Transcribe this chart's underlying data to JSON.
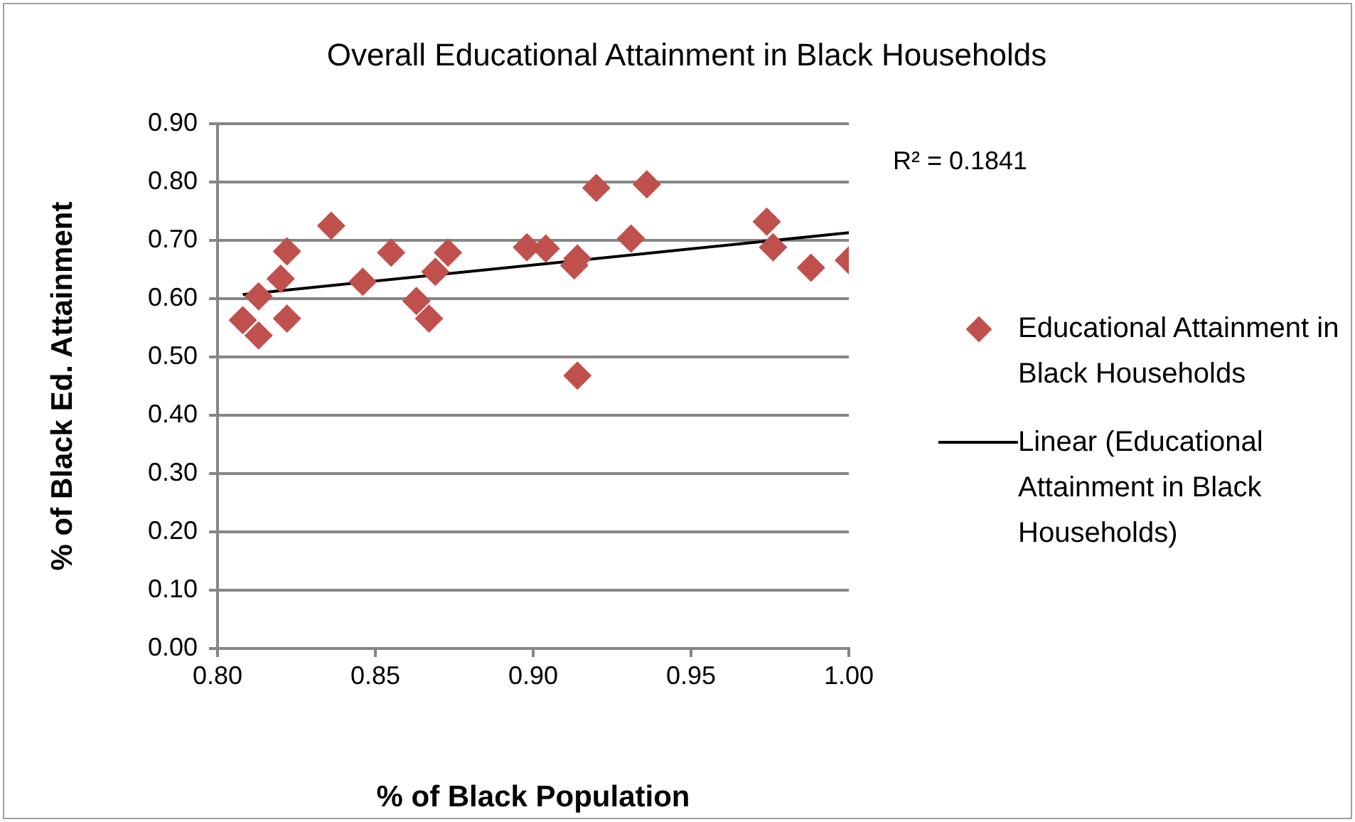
{
  "chart_data": {
    "type": "scatter",
    "title": "Overall Educational Attainment in Black Households",
    "xlabel": "% of Black Population",
    "ylabel": "% of Black Ed. Attainment",
    "xlim": [
      0.8,
      1.0
    ],
    "xticks": [
      {
        "value": 0.8,
        "label": "0.80"
      },
      {
        "value": 0.85,
        "label": "0.85"
      },
      {
        "value": 0.9,
        "label": "0.90"
      },
      {
        "value": 0.95,
        "label": "0.95"
      },
      {
        "value": 1.0,
        "label": "1.00"
      }
    ],
    "ylim": [
      0,
      0.9
    ],
    "yticks": [
      {
        "value": 0,
        "label": "0.00"
      },
      {
        "value": 0.1,
        "label": "0.10"
      },
      {
        "value": 0.2,
        "label": "0.20"
      },
      {
        "value": 0.3,
        "label": "0.30"
      },
      {
        "value": 0.4,
        "label": "0.40"
      },
      {
        "value": 0.5,
        "label": "0.50"
      },
      {
        "value": 0.6,
        "label": "0.60"
      },
      {
        "value": 0.7,
        "label": "0.70"
      },
      {
        "value": 0.8,
        "label": "0.80"
      },
      {
        "value": 0.9,
        "label": "0.90"
      }
    ],
    "grid": "y",
    "legend": "right",
    "marker": "diamond",
    "annotations": [
      "R² = 0.1841"
    ],
    "series": [
      {
        "name": "Educational Attainment in Black Households",
        "type": "scatter",
        "color": "#c0504d",
        "x": [
          0.808,
          0.813,
          0.813,
          0.82,
          0.822,
          0.822,
          0.836,
          0.846,
          0.855,
          0.863,
          0.867,
          0.869,
          0.873,
          0.898,
          0.904,
          0.913,
          0.914,
          0.914,
          0.92,
          0.931,
          0.936,
          0.974,
          0.976,
          0.988,
          1.0
        ],
        "values": [
          0.563,
          0.537,
          0.604,
          0.634,
          0.681,
          0.566,
          0.725,
          0.629,
          0.679,
          0.596,
          0.566,
          0.646,
          0.679,
          0.688,
          0.686,
          0.657,
          0.669,
          0.468,
          0.79,
          0.703,
          0.796,
          0.732,
          0.688,
          0.653,
          0.666
        ]
      },
      {
        "name": "Linear (Educational Attainment in Black Households)",
        "type": "line",
        "color": "#000000",
        "marker": "none",
        "line_style": "solid",
        "x": [
          0.808,
          1.0
        ],
        "values": [
          0.607,
          0.713
        ]
      }
    ]
  }
}
